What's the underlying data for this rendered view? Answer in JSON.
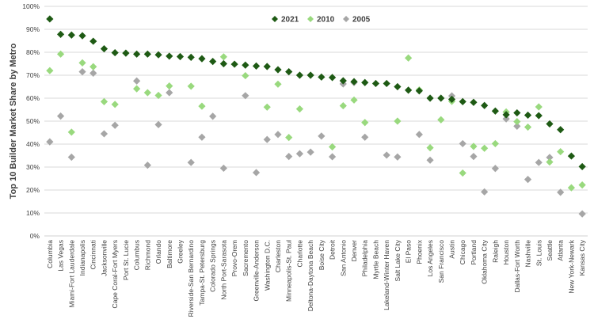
{
  "chart_data": {
    "type": "scatter",
    "title": "",
    "xlabel": "",
    "ylabel": "Top 10 Builder Market Share by Metro",
    "ylim": [
      0,
      1
    ],
    "yticks": [
      "0%",
      "10%",
      "20%",
      "30%",
      "40%",
      "50%",
      "60%",
      "70%",
      "80%",
      "90%",
      "100%"
    ],
    "grid": true,
    "legend_position": "top",
    "marker": "diamond",
    "categories": [
      "Columbia",
      "Las Vegas",
      "Miami-Fort Lauderdale",
      "Indianapolis",
      "Cincinnati",
      "Jacksonville",
      "Cape Coral-Fort Myers",
      "Port St. Lucie",
      "Columbus",
      "Richmond",
      "Orlando",
      "Baltimore",
      "Greeley",
      "Riverside-San Bernardino",
      "Tampa-St. Petersburg",
      "Colorado Springs",
      "North Port-Sarasota",
      "Provo-Orem",
      "Sacremento",
      "Greenville-Anderson",
      "Washington D.C.",
      "Charleston",
      "Minneapolis-St. Paul",
      "Charlotte",
      "Deltona-Daytona Beach",
      "Boise City",
      "Detroit",
      "San Antonio",
      "Denver",
      "Philadelphia",
      "Myrtle Beach",
      "Lakeland-Winter Haven",
      "Salt Lake City",
      "El Paso",
      "Phoenix",
      "Los Angeles",
      "San Francisco",
      "Austin",
      "Chicago",
      "Portland",
      "Oklahoma City",
      "Raleigh",
      "Houston",
      "Dallas-Fort Worth",
      "Nashville",
      "St. Louis",
      "Seattle",
      "Atlanta",
      "New York-Newark",
      "Kansas City"
    ],
    "series": [
      {
        "name": "2021",
        "color": "#1e5a14",
        "values": [
          0.945,
          0.878,
          0.875,
          0.872,
          0.848,
          0.815,
          0.798,
          0.796,
          0.792,
          0.792,
          0.789,
          0.783,
          0.781,
          0.778,
          0.772,
          0.76,
          0.75,
          0.748,
          0.744,
          0.74,
          0.738,
          0.724,
          0.715,
          0.7,
          0.7,
          0.692,
          0.69,
          0.676,
          0.672,
          0.668,
          0.664,
          0.664,
          0.65,
          0.635,
          0.632,
          0.6,
          0.6,
          0.595,
          0.585,
          0.582,
          0.568,
          0.544,
          0.528,
          0.536,
          0.526,
          0.524,
          0.488,
          0.463,
          0.348,
          0.302
        ]
      },
      {
        "name": "2010",
        "color": "#99d97e",
        "values": [
          0.72,
          0.792,
          0.452,
          0.754,
          0.737,
          0.585,
          0.573,
          null,
          0.641,
          0.624,
          0.612,
          0.653,
          null,
          0.652,
          0.565,
          null,
          0.78,
          null,
          0.698,
          null,
          0.561,
          0.661,
          0.429,
          0.553,
          null,
          null,
          0.388,
          0.567,
          0.592,
          0.494,
          null,
          null,
          0.5,
          0.775,
          0.636,
          0.384,
          0.506,
          0.586,
          0.274,
          0.39,
          0.382,
          0.402,
          0.54,
          0.498,
          0.474,
          0.562,
          0.322,
          0.367,
          0.21,
          0.222
        ]
      },
      {
        "name": "2005",
        "color": "#a6a6a6",
        "values": [
          0.41,
          0.522,
          0.343,
          0.715,
          0.709,
          0.445,
          0.482,
          null,
          0.675,
          0.308,
          0.485,
          0.624,
          null,
          0.32,
          0.43,
          0.521,
          0.295,
          null,
          0.611,
          0.276,
          0.42,
          0.442,
          0.346,
          0.358,
          0.365,
          0.435,
          0.345,
          0.662,
          0.668,
          0.43,
          null,
          0.352,
          0.344,
          null,
          0.442,
          0.33,
          null,
          0.61,
          0.402,
          0.346,
          0.192,
          0.294,
          0.51,
          0.478,
          0.246,
          0.32,
          0.342,
          0.19,
          null,
          0.096
        ]
      }
    ]
  }
}
